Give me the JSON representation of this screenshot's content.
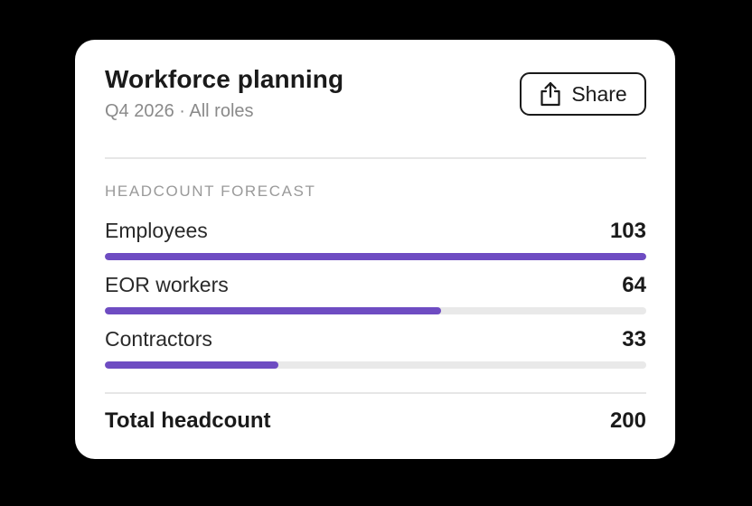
{
  "card": {
    "title": "Workforce planning",
    "subtitle": "Q4 2026 · All roles",
    "share_label": "Share",
    "share_icon": "share-icon"
  },
  "forecast": {
    "section_label": "HEADCOUNT FORECAST",
    "accent_color": "#6e4cc2",
    "track_color": "#e9e9e9",
    "max_value": 103,
    "rows": [
      {
        "label": "Employees",
        "value": "103",
        "amount": 103
      },
      {
        "label": "EOR workers",
        "value": "64",
        "amount": 64
      },
      {
        "label": "Contractors",
        "value": "33",
        "amount": 33
      }
    ]
  },
  "total": {
    "label": "Total headcount",
    "value": "200"
  }
}
